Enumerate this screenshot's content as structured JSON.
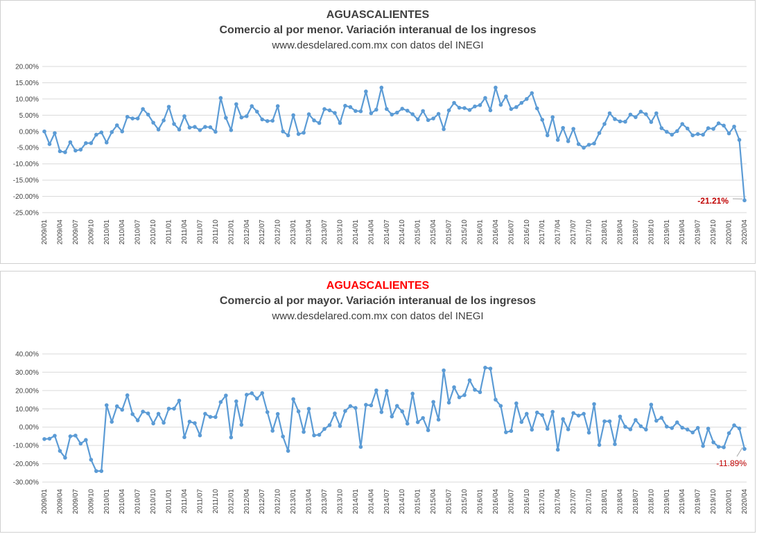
{
  "chart_data": [
    {
      "type": "line",
      "title": "AGUASCALIENTES",
      "subtitle": "Comercio al por menor. Variación interanual de los ingresos",
      "source": "www.desdelared.com.mx con datos del INEGI",
      "title_color": "#404040",
      "line_color": "#5b9bd5",
      "ylim": [
        -25,
        20
      ],
      "ytick_step": 5,
      "y_tick_labels": [
        "20.00%",
        "15.00%",
        "10.00%",
        "5.00%",
        "0.00%",
        "-5.00%",
        "-10.00%",
        "-15.00%",
        "-20.00%",
        "-25.00%"
      ],
      "x_start": "2009/01",
      "x_tick_labels": [
        "2009/01",
        "2009/04",
        "2009/07",
        "2009/10",
        "2010/01",
        "2010/04",
        "2010/07",
        "2010/10",
        "2011/01",
        "2011/04",
        "2011/07",
        "2011/10",
        "2012/01",
        "2012/04",
        "2012/07",
        "2012/10",
        "2013/01",
        "2013/04",
        "2013/07",
        "2013/10",
        "2014/01",
        "2014/04",
        "2014/07",
        "2014/10",
        "2015/01",
        "2015/04",
        "2015/07",
        "2015/10",
        "2016/01",
        "2016/04",
        "2016/07",
        "2016/10",
        "2017/01",
        "2017/04",
        "2017/07",
        "2017/10",
        "2018/01",
        "2018/04",
        "2018/07",
        "2018/10",
        "2019/01",
        "2019/04",
        "2019/07",
        "2019/10",
        "2020/01",
        "2020/04"
      ],
      "grid": true,
      "annotation": {
        "text": "-21.21%",
        "color": "#c00000",
        "bold": true
      },
      "values": [
        0.0,
        -3.9,
        -0.5,
        -6.1,
        -6.4,
        -3.3,
        -5.9,
        -5.6,
        -3.6,
        -3.6,
        -1.0,
        -0.3,
        -3.4,
        -0.2,
        1.9,
        0.0,
        4.5,
        4.0,
        4.0,
        6.9,
        5.2,
        2.7,
        0.6,
        3.4,
        7.6,
        2.3,
        0.6,
        4.7,
        1.2,
        1.4,
        0.4,
        1.4,
        1.3,
        -0.1,
        10.3,
        4.2,
        0.4,
        8.4,
        4.3,
        4.7,
        7.8,
        6.1,
        3.7,
        3.2,
        3.3,
        7.8,
        0.0,
        -1.2,
        5.0,
        -0.8,
        -0.4,
        5.3,
        3.4,
        2.6,
        6.9,
        6.5,
        5.7,
        2.6,
        7.9,
        7.5,
        6.3,
        6.2,
        12.3,
        5.6,
        6.7,
        13.5,
        6.9,
        5.2,
        5.8,
        7.0,
        6.4,
        5.3,
        3.7,
        6.3,
        3.5,
        4.0,
        5.4,
        0.7,
        6.5,
        8.8,
        7.3,
        7.2,
        6.6,
        7.7,
        8.1,
        10.3,
        6.5,
        13.5,
        8.2,
        10.8,
        6.9,
        7.5,
        8.8,
        10.0,
        11.8,
        7.1,
        3.6,
        -1.2,
        4.4,
        -2.6,
        1.1,
        -3.0,
        0.8,
        -3.9,
        -5.0,
        -4.1,
        -3.7,
        -0.5,
        2.3,
        5.6,
        3.8,
        3.1,
        3.0,
        5.2,
        4.4,
        6.1,
        5.3,
        2.9,
        5.6,
        1.0,
        -0.1,
        -1.0,
        0.1,
        2.3,
        0.9,
        -1.2,
        -0.8,
        -1.0,
        1.0,
        0.8,
        2.5,
        1.8,
        -0.6,
        1.5,
        -2.6,
        -21.21
      ]
    },
    {
      "type": "line",
      "title": "AGUASCALIENTES",
      "subtitle": "Comercio al por mayor. Variación interanual de los ingresos",
      "source": "www.desdelared.com.mx con datos del INEGI",
      "title_color": "#ff0000",
      "line_color": "#5b9bd5",
      "ylim": [
        -30,
        40
      ],
      "ytick_step": 10,
      "y_tick_labels": [
        "40.00%",
        "30.00%",
        "20.00%",
        "10.00%",
        "0.00%",
        "-10.00%",
        "-20.00%",
        "-30.00%"
      ],
      "x_start": "2009/01",
      "x_tick_labels": [
        "2009/01",
        "2009/04",
        "2009/07",
        "2009/10",
        "2010/01",
        "2010/04",
        "2010/07",
        "2010/10",
        "2011/01",
        "2011/04",
        "2011/07",
        "2011/10",
        "2012/01",
        "2012/04",
        "2012/07",
        "2012/10",
        "2013/01",
        "2013/04",
        "2013/07",
        "2013/10",
        "2014/01",
        "2014/04",
        "2014/07",
        "2014/10",
        "2015/01",
        "2015/04",
        "2015/07",
        "2015/10",
        "2016/01",
        "2016/04",
        "2016/07",
        "2016/10",
        "2017/01",
        "2017/04",
        "2017/07",
        "2017/10",
        "2018/01",
        "2018/04",
        "2018/07",
        "2018/10",
        "2019/01",
        "2019/04",
        "2019/07",
        "2019/10",
        "2020/01",
        "2020/04"
      ],
      "grid": true,
      "annotation": {
        "text": "-11.89%",
        "color": "#c00000",
        "bold": false
      },
      "values": [
        -6.5,
        -6.3,
        -4.7,
        -13.0,
        -16.7,
        -5.0,
        -4.6,
        -9.0,
        -7.0,
        -17.8,
        -24.0,
        -24.0,
        12.0,
        2.9,
        11.4,
        9.5,
        17.4,
        7.1,
        3.7,
        8.5,
        7.5,
        2.0,
        7.3,
        2.4,
        10.1,
        10.1,
        14.5,
        -5.5,
        3.0,
        2.2,
        -4.5,
        7.3,
        5.6,
        5.5,
        13.7,
        17.3,
        -5.6,
        14.1,
        1.3,
        17.7,
        18.5,
        15.6,
        18.6,
        8.2,
        -2.0,
        7.2,
        -5.1,
        -13.0,
        15.3,
        8.6,
        -2.6,
        10.0,
        -4.5,
        -4.2,
        -1.0,
        1.1,
        7.5,
        0.6,
        8.8,
        11.5,
        10.5,
        -10.8,
        12.2,
        11.9,
        20.1,
        8.2,
        19.8,
        5.8,
        11.6,
        8.6,
        1.9,
        18.3,
        2.7,
        5.0,
        -1.7,
        13.8,
        4.1,
        31.0,
        13.4,
        21.8,
        16.3,
        17.5,
        25.6,
        20.4,
        19.1,
        32.5,
        32.0,
        15.0,
        11.6,
        -2.8,
        -2.1,
        13.0,
        2.8,
        7.3,
        -1.4,
        8.0,
        6.6,
        -0.9,
        8.4,
        -12.3,
        4.4,
        -1.2,
        7.7,
        6.3,
        7.3,
        -3.0,
        12.6,
        -9.7,
        3.2,
        3.2,
        -9.3,
        5.8,
        0.2,
        -1.2,
        3.9,
        0.5,
        -1.3,
        12.3,
        3.5,
        5.1,
        0.3,
        -0.5,
        2.6,
        -0.3,
        -1.3,
        -2.9,
        -0.4,
        -10.3,
        -0.8,
        -8.3,
        -10.7,
        -11.0,
        -3.3,
        1.0,
        -0.7,
        -11.89
      ]
    }
  ]
}
